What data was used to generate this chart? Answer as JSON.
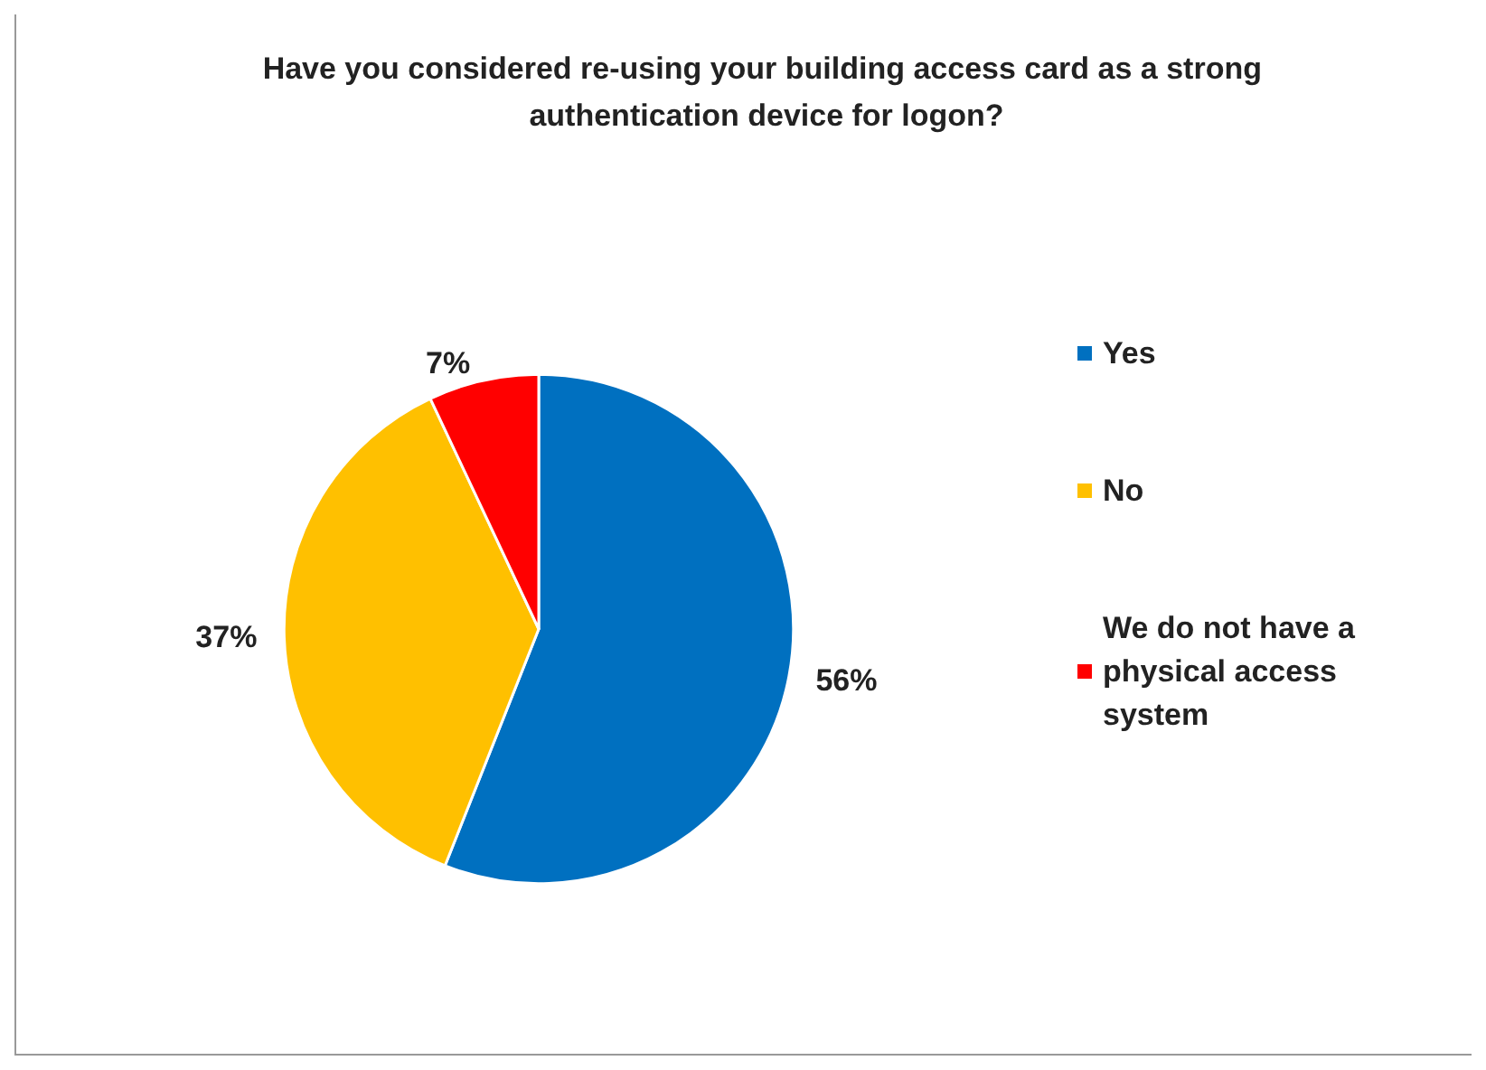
{
  "chart_data": {
    "type": "pie",
    "title": "Have you considered re-using your building access card as a strong authentication device for logon?",
    "categories": [
      "Yes",
      "No",
      "We do not have a physical access system"
    ],
    "values": [
      56,
      37,
      7
    ],
    "value_labels": [
      "56%",
      "37%",
      "7%"
    ],
    "colors": [
      "#0070c0",
      "#ffc000",
      "#ff0000"
    ],
    "legend": "right"
  }
}
